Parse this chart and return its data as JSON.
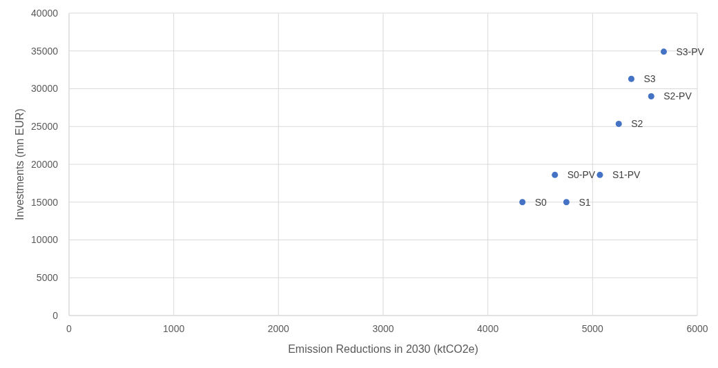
{
  "chart_data": {
    "type": "scatter",
    "xlabel": "Emission Reductions in 2030 (ktCO2e)",
    "ylabel": "Investments (mn EUR)",
    "x": [
      4330,
      4750,
      4640,
      5070,
      5250,
      5370,
      5560,
      5680
    ],
    "series": [
      {
        "color": "#4472c4",
        "values": [
          15000,
          15000,
          18600,
          18600,
          25350,
          31300,
          29000,
          34900
        ]
      }
    ],
    "xlim": [
      0,
      6000
    ],
    "xticks": [
      0,
      1000,
      2000,
      3000,
      4000,
      5000,
      6000
    ],
    "ylim": [
      0,
      40000
    ],
    "yticks": [
      0,
      5000,
      10000,
      15000,
      20000,
      25000,
      30000,
      35000,
      40000
    ],
    "grid": true,
    "marker": "circle",
    "annotations": [
      {
        "text": "S0",
        "x": 4330,
        "y": 15000
      },
      {
        "text": "S1",
        "x": 4750,
        "y": 15000
      },
      {
        "text": "S0-PV",
        "x": 4640,
        "y": 18600
      },
      {
        "text": "S1-PV",
        "x": 5070,
        "y": 18600
      },
      {
        "text": "S2",
        "x": 5250,
        "y": 25350
      },
      {
        "text": "S3",
        "x": 5370,
        "y": 31300
      },
      {
        "text": "S2-PV",
        "x": 5560,
        "y": 29000
      },
      {
        "text": "S3-PV",
        "x": 5680,
        "y": 34900
      }
    ]
  }
}
